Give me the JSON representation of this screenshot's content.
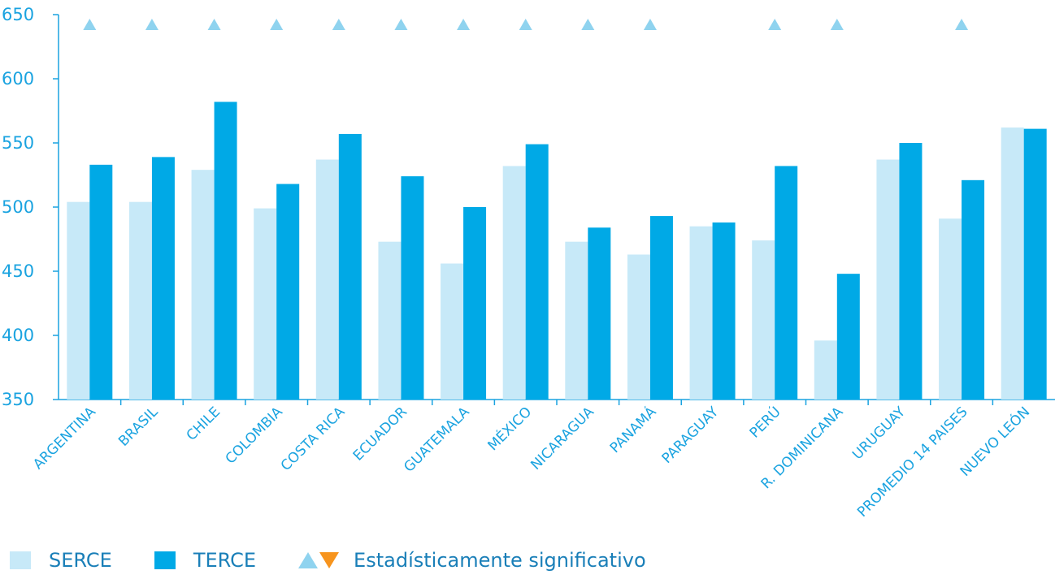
{
  "chart_data": {
    "type": "bar",
    "categories": [
      "ARGENTINA",
      "BRASIL",
      "CHILE",
      "COLOMBIA",
      "COSTA RICA",
      "ECUADOR",
      "GUATEMALA",
      "MÉXICO",
      "NICARAGUA",
      "PANAMÁ",
      "PARAGUAY",
      "PERÚ",
      "R. DOMINICANA",
      "URUGUAY",
      "PROMEDIO 14 PAISES",
      "NUEVO LEÓN"
    ],
    "series": [
      {
        "name": "SERCE",
        "color": "#c7e9f8",
        "values": [
          504,
          504,
          529,
          499,
          537,
          473,
          456,
          532,
          473,
          463,
          485,
          474,
          396,
          537,
          491,
          562
        ]
      },
      {
        "name": "TERCE",
        "color": "#00a9e6",
        "values": [
          533,
          539,
          582,
          518,
          557,
          524,
          500,
          549,
          484,
          493,
          488,
          532,
          448,
          550,
          521,
          561
        ]
      }
    ],
    "significant": [
      true,
      true,
      true,
      true,
      true,
      true,
      true,
      true,
      true,
      true,
      false,
      true,
      true,
      false,
      true,
      false
    ],
    "significant_up_color": "#8fd3ef",
    "significant_down_color": "#f7941d",
    "ylim": [
      350,
      650
    ],
    "yticks": [
      350,
      400,
      450,
      500,
      550,
      600,
      650
    ],
    "grid": false,
    "legend_placement": "bottom-left"
  },
  "legend": {
    "serce_label": "SERCE",
    "terce_label": "TERCE",
    "significant_label": "Estadísticamente significativo"
  }
}
